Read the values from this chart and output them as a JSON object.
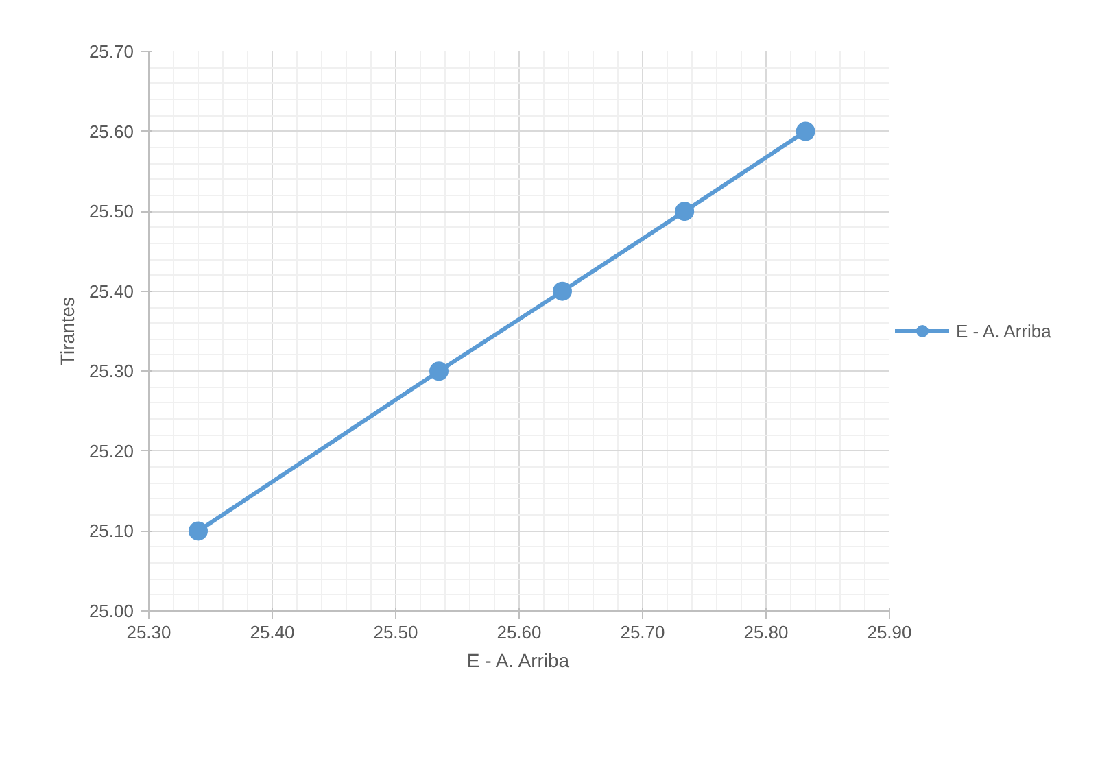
{
  "chart_data": {
    "type": "line",
    "xlabel": "E - A. Arriba",
    "ylabel": "Tirantes",
    "x": [
      25.34,
      25.535,
      25.635,
      25.734,
      25.832
    ],
    "series": [
      {
        "name": "E - A. Arriba",
        "color": "#5b9bd5",
        "values": [
          25.1,
          25.3,
          25.4,
          25.5,
          25.6
        ]
      }
    ],
    "xlim": [
      25.3,
      25.9
    ],
    "ylim": [
      25.0,
      25.7
    ],
    "xticks": [
      {
        "value": 25.3,
        "label": "25.30"
      },
      {
        "value": 25.4,
        "label": "25.40"
      },
      {
        "value": 25.5,
        "label": "25.50"
      },
      {
        "value": 25.6,
        "label": "25.60"
      },
      {
        "value": 25.7,
        "label": "25.70"
      },
      {
        "value": 25.8,
        "label": "25.80"
      },
      {
        "value": 25.9,
        "label": "25.90"
      }
    ],
    "yticks": [
      {
        "value": 25.0,
        "label": "25.00"
      },
      {
        "value": 25.1,
        "label": "25.10"
      },
      {
        "value": 25.2,
        "label": "25.20"
      },
      {
        "value": 25.3,
        "label": "25.30"
      },
      {
        "value": 25.4,
        "label": "25.40"
      },
      {
        "value": 25.5,
        "label": "25.50"
      },
      {
        "value": 25.6,
        "label": "25.60"
      },
      {
        "value": 25.7,
        "label": "25.70"
      }
    ],
    "grid": true,
    "legend": "right",
    "marker": "circle",
    "line_style": "solid"
  }
}
